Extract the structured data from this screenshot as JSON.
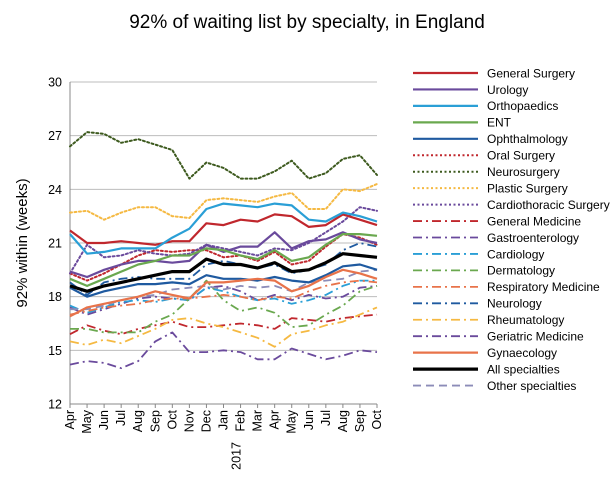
{
  "chart_data": {
    "type": "line",
    "title": "92% of waiting list by specialty, in England",
    "ylabel": "92% within (weeks)",
    "xlabel": "",
    "ylim": [
      12,
      30
    ],
    "yticks": [
      12,
      15,
      18,
      21,
      24,
      27,
      30
    ],
    "grid": true,
    "legend_position": "right",
    "x_extra_label": {
      "under": "Jan",
      "text": "2017"
    },
    "categories": [
      "Apr",
      "May",
      "Jun",
      "Jul",
      "Aug",
      "Sep",
      "Oct",
      "Nov",
      "Dec",
      "Jan",
      "Feb",
      "Mar",
      "Apr",
      "May",
      "Jun",
      "Jul",
      "Aug",
      "Sep",
      "Oct"
    ],
    "series": [
      {
        "name": "General Surgery",
        "color": "#c0272d",
        "dash": "solid",
        "width": 2.2,
        "values": [
          21.7,
          21.0,
          21.0,
          21.1,
          21.0,
          20.9,
          21.1,
          21.1,
          22.1,
          22.0,
          22.3,
          22.2,
          22.6,
          22.5,
          21.9,
          22.0,
          22.6,
          22.3,
          22.0
        ]
      },
      {
        "name": "Urology",
        "color": "#6a4a9c",
        "dash": "solid",
        "width": 2.2,
        "values": [
          19.4,
          19.1,
          19.5,
          19.8,
          20.0,
          20.0,
          19.9,
          20.0,
          20.9,
          20.5,
          20.8,
          20.8,
          21.6,
          20.7,
          21.1,
          21.2,
          21.6,
          21.2,
          21.0
        ]
      },
      {
        "name": "Orthopaedics",
        "color": "#2a9fd6",
        "dash": "solid",
        "width": 2.2,
        "values": [
          21.5,
          20.4,
          20.5,
          20.7,
          20.7,
          20.7,
          21.3,
          21.8,
          22.9,
          23.2,
          23.1,
          23.0,
          23.2,
          23.1,
          22.3,
          22.2,
          22.7,
          22.5,
          22.2
        ]
      },
      {
        "name": "ENT",
        "color": "#6aa84f",
        "dash": "solid",
        "width": 2.2,
        "values": [
          19.0,
          18.6,
          19.0,
          19.4,
          19.8,
          20.0,
          20.3,
          20.3,
          20.7,
          20.6,
          20.3,
          20.1,
          20.6,
          20.0,
          20.2,
          20.9,
          21.5,
          21.5,
          21.4
        ]
      },
      {
        "name": "Ophthalmology",
        "color": "#1f5aa0",
        "dash": "solid",
        "width": 2.2,
        "values": [
          18.5,
          18.0,
          18.3,
          18.5,
          18.7,
          18.7,
          18.8,
          18.7,
          19.2,
          19.0,
          19.0,
          18.9,
          19.1,
          18.9,
          18.8,
          19.2,
          19.7,
          19.8,
          19.5
        ]
      },
      {
        "name": "Oral Surgery",
        "color": "#c0272d",
        "dash": "dot",
        "width": 2,
        "values": [
          19.3,
          18.9,
          19.3,
          19.8,
          20.3,
          20.6,
          20.5,
          20.6,
          20.6,
          20.2,
          20.3,
          20.0,
          20.5,
          19.8,
          20.0,
          20.8,
          21.5,
          21.3,
          20.9
        ]
      },
      {
        "name": "Neurosurgery",
        "color": "#3d5a1e",
        "dash": "dot",
        "width": 2,
        "values": [
          26.4,
          27.2,
          27.1,
          26.6,
          26.8,
          26.5,
          26.2,
          24.6,
          25.5,
          25.2,
          24.6,
          24.6,
          25.0,
          25.6,
          24.6,
          24.9,
          25.7,
          25.9,
          24.8
        ]
      },
      {
        "name": "Plastic Surgery",
        "color": "#f5b942",
        "dash": "dot",
        "width": 2,
        "values": [
          22.7,
          22.8,
          22.3,
          22.7,
          23.0,
          23.0,
          22.5,
          22.4,
          23.4,
          23.5,
          23.4,
          23.3,
          23.6,
          23.8,
          22.9,
          22.9,
          24.0,
          23.9,
          24.3
        ]
      },
      {
        "name": "Cardiothoracic Surgery",
        "color": "#6a4a9c",
        "dash": "dot",
        "width": 2,
        "values": [
          19.3,
          20.9,
          20.2,
          20.3,
          20.6,
          20.4,
          20.3,
          20.4,
          20.9,
          20.7,
          20.5,
          20.3,
          20.7,
          20.6,
          21.0,
          21.6,
          22.2,
          23.0,
          22.8
        ]
      },
      {
        "name": "General Medicine",
        "color": "#c0272d",
        "dash": "dashdot",
        "width": 1.8,
        "values": [
          15.9,
          16.4,
          16.1,
          15.9,
          16.2,
          16.4,
          16.6,
          16.3,
          16.3,
          16.4,
          16.5,
          16.4,
          16.2,
          16.8,
          16.7,
          16.6,
          16.8,
          16.9,
          17.0
        ]
      },
      {
        "name": "Gastroenterology",
        "color": "#6a4a9c",
        "dash": "dashdot",
        "width": 1.8,
        "values": [
          17.4,
          17.0,
          17.3,
          17.6,
          17.9,
          18.0,
          17.9,
          17.8,
          18.5,
          18.6,
          18.3,
          17.8,
          18.1,
          17.8,
          18.1,
          17.9,
          18.0,
          18.5,
          18.6
        ]
      },
      {
        "name": "Cardiology",
        "color": "#2a9fd6",
        "dash": "dashdot",
        "width": 1.8,
        "values": [
          17.5,
          17.1,
          17.4,
          17.7,
          17.8,
          17.7,
          17.9,
          17.8,
          18.5,
          18.3,
          18.0,
          17.8,
          17.9,
          17.6,
          17.8,
          18.1,
          18.6,
          18.9,
          18.9
        ]
      },
      {
        "name": "Dermatology",
        "color": "#6aa84f",
        "dash": "dashdot",
        "width": 1.8,
        "values": [
          16.2,
          16.2,
          16.0,
          16.0,
          16.0,
          16.6,
          17.0,
          17.9,
          18.9,
          17.8,
          17.2,
          17.4,
          17.1,
          16.3,
          16.4,
          17.0,
          17.5,
          18.3,
          18.6
        ]
      },
      {
        "name": "Respiratory Medicine",
        "color": "#e8734a",
        "dash": "dashdot",
        "width": 1.8,
        "values": [
          17.0,
          17.2,
          17.4,
          17.5,
          17.6,
          17.8,
          17.9,
          17.9,
          18.0,
          18.1,
          18.0,
          17.8,
          18.0,
          17.9,
          18.3,
          18.6,
          18.8,
          18.9,
          18.8
        ]
      },
      {
        "name": "Neurology",
        "color": "#1f5aa0",
        "dash": "dashdot",
        "width": 1.8,
        "values": [
          18.8,
          18.1,
          18.8,
          19.0,
          19.1,
          19.0,
          19.0,
          19.0,
          19.8,
          20.0,
          19.8,
          19.6,
          19.8,
          19.3,
          19.5,
          19.8,
          20.6,
          21.0,
          20.8
        ]
      },
      {
        "name": "Rheumatology",
        "color": "#f5b942",
        "dash": "dashdot",
        "width": 1.8,
        "values": [
          15.5,
          15.3,
          15.6,
          15.4,
          15.8,
          16.2,
          16.7,
          16.8,
          16.5,
          16.3,
          16.0,
          15.7,
          15.2,
          15.9,
          16.1,
          16.4,
          16.6,
          17.0,
          17.4
        ]
      },
      {
        "name": "Geriatric Medicine",
        "color": "#6a4a9c",
        "dash": "dashdot",
        "width": 1.8,
        "values": [
          14.2,
          14.4,
          14.3,
          14.0,
          14.4,
          15.5,
          16.0,
          14.9,
          14.9,
          15.0,
          14.9,
          14.5,
          14.5,
          15.1,
          14.8,
          14.5,
          14.7,
          15.0,
          14.9
        ]
      },
      {
        "name": "Gynaecology",
        "color": "#e8734a",
        "dash": "solid",
        "width": 2.2,
        "values": [
          16.9,
          17.4,
          17.6,
          17.8,
          18.0,
          18.3,
          18.1,
          17.9,
          18.8,
          18.8,
          18.9,
          19.0,
          18.9,
          18.3,
          18.6,
          19.1,
          19.5,
          19.3,
          19.0
        ]
      },
      {
        "name": "All specialties",
        "color": "#000000",
        "dash": "solid",
        "width": 3.2,
        "values": [
          18.6,
          18.3,
          18.6,
          18.8,
          19.0,
          19.2,
          19.4,
          19.4,
          20.1,
          19.8,
          19.8,
          19.6,
          19.9,
          19.4,
          19.5,
          19.9,
          20.4,
          20.3,
          20.2
        ]
      },
      {
        "name": "Other specialties",
        "color": "#8c8cb8",
        "dash": "dash",
        "width": 1.8,
        "values": [
          17.3,
          17.3,
          17.5,
          17.8,
          18.0,
          18.1,
          18.4,
          18.5,
          18.6,
          18.4,
          18.6,
          18.5,
          18.6,
          18.3,
          18.8,
          18.9,
          19.0,
          19.4,
          19.5
        ]
      }
    ]
  }
}
